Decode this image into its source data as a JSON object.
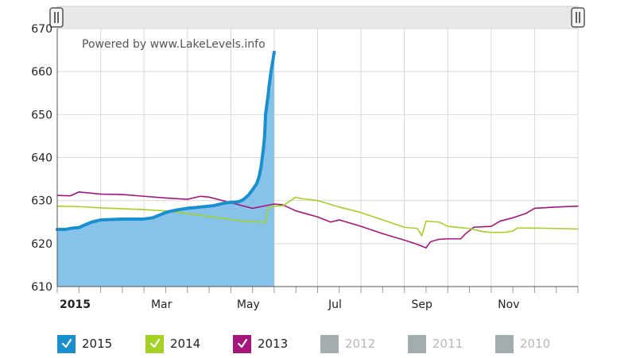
{
  "watermark": "Powered by www.LakeLevels.info",
  "chart_data": {
    "type": "area",
    "title": "",
    "xlabel": "",
    "ylabel": "",
    "ylim": [
      610,
      670
    ],
    "yticks": [
      610,
      620,
      630,
      640,
      650,
      660,
      670
    ],
    "xlim": [
      0,
      12
    ],
    "xticks": [
      {
        "x": 0,
        "label": "2015",
        "bold": true
      },
      {
        "x": 2,
        "label": "Mar",
        "bold": false
      },
      {
        "x": 4,
        "label": "May",
        "bold": false
      },
      {
        "x": 6,
        "label": "Jul",
        "bold": false
      },
      {
        "x": 8,
        "label": "Sep",
        "bold": false
      },
      {
        "x": 10,
        "label": "Nov",
        "bold": false
      }
    ],
    "grid": true,
    "legend_position": "bottom",
    "navigator_handles": true,
    "series": [
      {
        "name": "2015",
        "color": "#1a8fd0",
        "fill": "#87c3e8",
        "filled": true,
        "width": 4,
        "active": true,
        "x": [
          0,
          0.2,
          0.35,
          0.5,
          0.6,
          0.7,
          0.8,
          1.0,
          1.5,
          2.0,
          2.2,
          2.4,
          2.5,
          2.6,
          2.8,
          3.0,
          3.2,
          3.4,
          3.6,
          3.8,
          4.0,
          4.1,
          4.2,
          4.3,
          4.4,
          4.5,
          4.6,
          4.65,
          4.7,
          4.75,
          4.78,
          4.8,
          4.82,
          4.84,
          4.86,
          4.88,
          4.9,
          4.92,
          4.94,
          4.96,
          4.98,
          5.0
        ],
        "y": [
          623.3,
          623.3,
          623.6,
          623.7,
          624.2,
          624.6,
          625.0,
          625.5,
          625.7,
          625.7,
          626.0,
          626.8,
          627.2,
          627.5,
          627.9,
          628.2,
          628.4,
          628.6,
          628.8,
          629.3,
          629.6,
          629.6,
          629.8,
          630.3,
          631.2,
          632.5,
          634.0,
          635.5,
          638.0,
          642.0,
          645.0,
          650.0,
          651.5,
          653.0,
          654.5,
          656.5,
          658.0,
          659.5,
          660.8,
          662.0,
          663.3,
          664.5
        ]
      },
      {
        "name": "2014",
        "color": "#a3d124",
        "filled": false,
        "width": 1.6,
        "active": true,
        "x": [
          0,
          0.5,
          1.0,
          1.5,
          2.0,
          2.5,
          3.0,
          3.5,
          4.0,
          4.3,
          4.5,
          4.8,
          4.85,
          5.0,
          5.2,
          5.5,
          5.6,
          6.0,
          6.5,
          7.0,
          7.5,
          8.0,
          8.3,
          8.4,
          8.5,
          8.8,
          9.0,
          9.5,
          9.8,
          10.0,
          10.3,
          10.5,
          10.6,
          11.0,
          11.5,
          12.0
        ],
        "y": [
          628.7,
          628.6,
          628.3,
          628.1,
          627.9,
          627.6,
          627.0,
          626.3,
          625.6,
          625.2,
          625.1,
          624.9,
          628.2,
          628.7,
          628.8,
          630.8,
          630.5,
          630.0,
          628.5,
          627.2,
          625.5,
          623.8,
          623.5,
          621.8,
          625.2,
          625.0,
          624.0,
          623.5,
          622.8,
          622.6,
          622.6,
          622.9,
          623.6,
          623.6,
          623.5,
          623.4
        ]
      },
      {
        "name": "2013",
        "color": "#a6147d",
        "filled": false,
        "width": 1.6,
        "active": true,
        "x": [
          0,
          0.3,
          0.5,
          1.0,
          1.5,
          2.0,
          2.5,
          3.0,
          3.3,
          3.5,
          4.0,
          4.5,
          5.0,
          5.2,
          5.5,
          6.0,
          6.3,
          6.5,
          7.0,
          7.5,
          8.0,
          8.3,
          8.5,
          8.6,
          8.8,
          9.0,
          9.3,
          9.4,
          9.6,
          9.8,
          10.0,
          10.2,
          10.5,
          10.8,
          11.0,
          11.5,
          12.0
        ],
        "y": [
          631.2,
          631.1,
          632.0,
          631.5,
          631.4,
          631.0,
          630.6,
          630.3,
          631.0,
          630.8,
          629.5,
          628.2,
          629.2,
          629.0,
          627.6,
          626.2,
          625.0,
          625.5,
          624.0,
          622.3,
          620.8,
          619.8,
          619.0,
          620.4,
          621.0,
          621.1,
          621.1,
          622.2,
          623.8,
          623.9,
          624.0,
          625.2,
          626.0,
          627.0,
          628.2,
          628.5,
          628.7
        ]
      },
      {
        "name": "2012",
        "color": "#a3adb0",
        "active": false,
        "x": [],
        "y": []
      },
      {
        "name": "2011",
        "color": "#a3adb0",
        "active": false,
        "x": [],
        "y": []
      },
      {
        "name": "2010",
        "color": "#a3adb0",
        "active": false,
        "x": [],
        "y": []
      }
    ]
  }
}
